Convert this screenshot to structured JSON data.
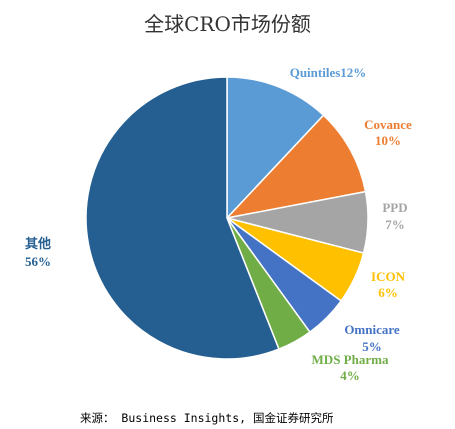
{
  "page": {
    "title": "全球CRO市场份额",
    "source": "来源： Business Insights, 国金证券研究所"
  },
  "chart_data": {
    "type": "pie",
    "title": "全球CRO市场份额",
    "slices": [
      {
        "name": "Quintiles",
        "value": 12,
        "value_label": "12%",
        "color": "#5b9bd5"
      },
      {
        "name": "Covance",
        "value": 10,
        "value_label": "10%",
        "color": "#ed7d31"
      },
      {
        "name": "PPD",
        "value": 7,
        "value_label": "7%",
        "color": "#a5a5a5"
      },
      {
        "name": "ICON",
        "value": 6,
        "value_label": "6%",
        "color": "#ffc000"
      },
      {
        "name": "Omnicare",
        "value": 5,
        "value_label": "5%",
        "color": "#4472c4"
      },
      {
        "name": "MDS Pharma",
        "value": 4,
        "value_label": "4%",
        "color": "#70ad47"
      },
      {
        "name": "其他",
        "value": 56,
        "value_label": "56%",
        "color": "#255e91"
      }
    ],
    "start": "12 o'clock",
    "direction": "clockwise"
  }
}
